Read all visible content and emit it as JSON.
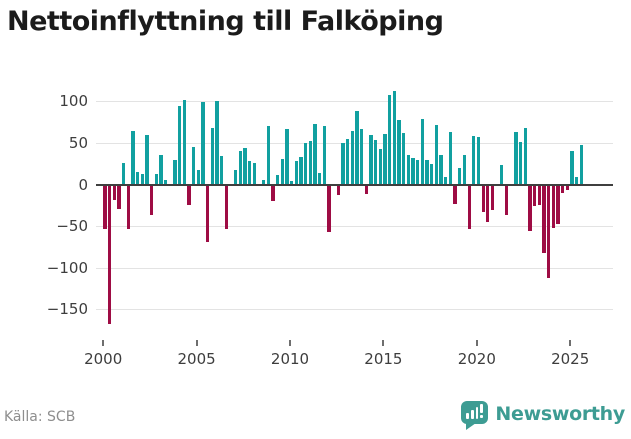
{
  "title": "Nettoinflyttning till Falköping",
  "source": "Källa: SCB",
  "branding": {
    "name": "Newsworthy"
  },
  "colors": {
    "positive_bar": "#11a0a0",
    "negative_bar": "#9e0c44",
    "gridline": "#e3e3e3",
    "zero_axis": "#3f3f3f",
    "axis_text": "#3d3d3d",
    "title_text": "#1b1b1b",
    "source_text": "#8e8e8e",
    "brand_teal": "#3d9c93"
  },
  "chart_data": {
    "type": "bar",
    "title": "Nettoinflyttning till Falköping",
    "xlabel": "",
    "ylabel": "",
    "frequency": "quarterly",
    "start_period": "2000Q1",
    "end_period": "2025Q3",
    "ylim": [
      -175,
      120
    ],
    "grid": true,
    "legend": "none",
    "y_ticks": [
      100,
      50,
      0,
      -50,
      -100,
      -150
    ],
    "y_tick_labels": [
      "100",
      "50",
      "0",
      "−50",
      "−100",
      "−150"
    ],
    "x_tick_years": [
      2000,
      2005,
      2010,
      2015,
      2020,
      2025
    ],
    "x_tick_labels": [
      "2000",
      "2005",
      "2010",
      "2015",
      "2020",
      "2025"
    ],
    "values": [
      -53,
      -168,
      -18,
      -29,
      26,
      -53,
      64,
      15,
      13,
      59,
      -37,
      13,
      35,
      6,
      0,
      29,
      95,
      102,
      -24,
      45,
      18,
      99,
      -69,
      68,
      101,
      34,
      -54,
      0,
      18,
      40,
      44,
      28,
      26,
      0,
      5,
      70,
      -20,
      11,
      31,
      67,
      4,
      28,
      33,
      50,
      52,
      73,
      14,
      70,
      -57,
      0,
      -13,
      50,
      55,
      64,
      88,
      67,
      -11,
      60,
      53,
      43,
      61,
      108,
      113,
      77,
      62,
      36,
      32,
      30,
      79,
      29,
      25,
      71,
      35,
      9,
      63,
      -23,
      20,
      35,
      -53,
      58,
      57,
      -33,
      -45,
      -31,
      0,
      24,
      -37,
      0,
      63,
      51,
      68,
      -56,
      -26,
      -25,
      -82,
      -112,
      -52,
      -48,
      -10,
      -6,
      40,
      9,
      47
    ]
  }
}
